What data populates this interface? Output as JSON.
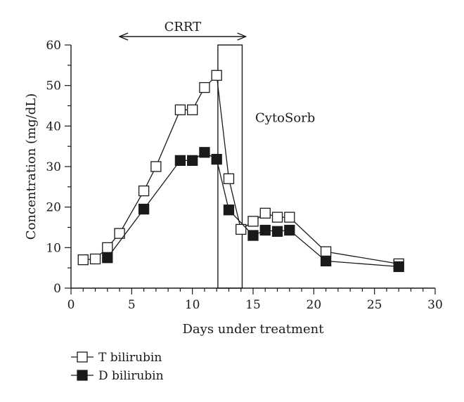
{
  "chart_data": {
    "type": "line",
    "xlabel": "Days under treatment",
    "ylabel": "Concentration (mg/dL)",
    "xlim": [
      0,
      30
    ],
    "ylim": [
      0,
      60
    ],
    "xticks": [
      0,
      5,
      10,
      15,
      20,
      25,
      30
    ],
    "yticks": [
      0,
      10,
      20,
      30,
      40,
      50,
      60
    ],
    "grid": false,
    "legend_position": "bottom-left",
    "series": [
      {
        "name": "T bilirubin",
        "marker": "open-square",
        "color": "#1a1a1a",
        "x": [
          1,
          2,
          3,
          4,
          6,
          7,
          9,
          10,
          11,
          12,
          13,
          14,
          15,
          16,
          17,
          18,
          21,
          27
        ],
        "y": [
          7,
          7.2,
          10,
          13.5,
          24,
          30,
          44,
          44,
          49.5,
          52.5,
          27,
          14.5,
          16.5,
          18.5,
          17.5,
          17.5,
          9,
          6
        ]
      },
      {
        "name": "D bilirubin",
        "marker": "filled-square",
        "color": "#1a1a1a",
        "x": [
          3,
          6,
          9,
          10,
          11,
          12,
          13,
          15,
          16,
          17,
          18,
          21,
          27
        ],
        "y": [
          7.5,
          19.5,
          31.5,
          31.5,
          33.5,
          31.8,
          19.3,
          13,
          14.3,
          14,
          14.3,
          6.7,
          5.3
        ]
      }
    ],
    "annotations": [
      {
        "text": "CRRT",
        "kind": "double-arrow",
        "x_range": [
          4,
          14.4
        ],
        "y": 62.3
      },
      {
        "text": "CytoSorb",
        "kind": "box",
        "x_range": [
          12.1,
          14.1
        ],
        "y_range": [
          0,
          60
        ],
        "label_x": 15,
        "label_y": 41
      }
    ]
  }
}
